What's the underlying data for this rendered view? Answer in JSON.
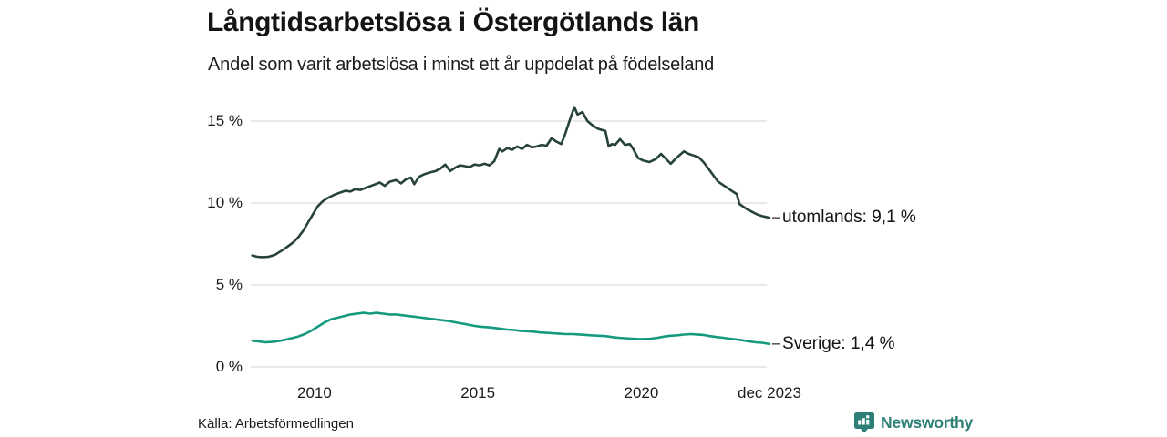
{
  "header": {
    "title": "Långtidsarbetslösa i Östergötlands län",
    "subtitle": "Andel som varit arbetslösa i minst ett år uppdelat på födelseland"
  },
  "chart_data": {
    "type": "line",
    "title": "Långtidsarbetslösa i Östergötlands län",
    "subtitle": "Andel som varit arbetslösa i minst ett år uppdelat på födelseland",
    "unit": "%",
    "grid": true,
    "legend_position": "right-end-labels",
    "x_range": [
      2008.05,
      2023.92
    ],
    "y_range": [
      0,
      15.9
    ],
    "grid_color": "#dcdcdc",
    "y_ticks": [
      {
        "value": 0,
        "label": "0 %"
      },
      {
        "value": 5,
        "label": "5 %"
      },
      {
        "value": 10,
        "label": "10 %"
      },
      {
        "value": 15,
        "label": "15 %"
      }
    ],
    "x_ticks": [
      {
        "value": 2010,
        "label": "2010"
      },
      {
        "value": 2015,
        "label": "2015"
      },
      {
        "value": 2020,
        "label": "2020"
      },
      {
        "value": 2023.92,
        "label": "dec 2023"
      }
    ],
    "series": [
      {
        "name": "utomlands",
        "end_label": "utomlands: 9,1 %",
        "color": "#27423c",
        "points": [
          [
            2008.1,
            6.8
          ],
          [
            2008.25,
            6.72
          ],
          [
            2008.4,
            6.7
          ],
          [
            2008.6,
            6.72
          ],
          [
            2008.8,
            6.85
          ],
          [
            2009.0,
            7.1
          ],
          [
            2009.15,
            7.3
          ],
          [
            2009.25,
            7.45
          ],
          [
            2009.35,
            7.6
          ],
          [
            2009.5,
            7.9
          ],
          [
            2009.65,
            8.3
          ],
          [
            2009.8,
            8.8
          ],
          [
            2009.95,
            9.3
          ],
          [
            2010.1,
            9.8
          ],
          [
            2010.25,
            10.1
          ],
          [
            2010.4,
            10.3
          ],
          [
            2010.6,
            10.5
          ],
          [
            2010.8,
            10.65
          ],
          [
            2010.95,
            10.75
          ],
          [
            2011.1,
            10.7
          ],
          [
            2011.25,
            10.85
          ],
          [
            2011.4,
            10.8
          ],
          [
            2011.6,
            10.95
          ],
          [
            2011.8,
            11.1
          ],
          [
            2012.0,
            11.25
          ],
          [
            2012.15,
            11.05
          ],
          [
            2012.3,
            11.3
          ],
          [
            2012.5,
            11.4
          ],
          [
            2012.65,
            11.2
          ],
          [
            2012.8,
            11.45
          ],
          [
            2012.95,
            11.55
          ],
          [
            2013.05,
            11.15
          ],
          [
            2013.2,
            11.6
          ],
          [
            2013.35,
            11.75
          ],
          [
            2013.5,
            11.85
          ],
          [
            2013.7,
            11.95
          ],
          [
            2013.85,
            12.1
          ],
          [
            2014.0,
            12.35
          ],
          [
            2014.15,
            11.95
          ],
          [
            2014.3,
            12.15
          ],
          [
            2014.45,
            12.3
          ],
          [
            2014.6,
            12.25
          ],
          [
            2014.75,
            12.2
          ],
          [
            2014.9,
            12.35
          ],
          [
            2015.05,
            12.3
          ],
          [
            2015.2,
            12.4
          ],
          [
            2015.35,
            12.3
          ],
          [
            2015.5,
            12.55
          ],
          [
            2015.65,
            13.3
          ],
          [
            2015.75,
            13.15
          ],
          [
            2015.9,
            13.35
          ],
          [
            2016.05,
            13.25
          ],
          [
            2016.2,
            13.45
          ],
          [
            2016.35,
            13.3
          ],
          [
            2016.5,
            13.55
          ],
          [
            2016.65,
            13.4
          ],
          [
            2016.8,
            13.45
          ],
          [
            2016.95,
            13.55
          ],
          [
            2017.1,
            13.5
          ],
          [
            2017.25,
            13.95
          ],
          [
            2017.4,
            13.75
          ],
          [
            2017.55,
            13.6
          ],
          [
            2017.65,
            14.1
          ],
          [
            2017.75,
            14.7
          ],
          [
            2017.85,
            15.3
          ],
          [
            2017.95,
            15.85
          ],
          [
            2018.05,
            15.4
          ],
          [
            2018.2,
            15.55
          ],
          [
            2018.35,
            15.0
          ],
          [
            2018.5,
            14.75
          ],
          [
            2018.65,
            14.55
          ],
          [
            2018.8,
            14.45
          ],
          [
            2018.9,
            14.4
          ],
          [
            2019.0,
            13.45
          ],
          [
            2019.1,
            13.6
          ],
          [
            2019.2,
            13.55
          ],
          [
            2019.35,
            13.9
          ],
          [
            2019.5,
            13.55
          ],
          [
            2019.65,
            13.6
          ],
          [
            2019.75,
            13.3
          ],
          [
            2019.9,
            12.75
          ],
          [
            2020.05,
            12.6
          ],
          [
            2020.25,
            12.5
          ],
          [
            2020.45,
            12.7
          ],
          [
            2020.6,
            13.0
          ],
          [
            2020.75,
            12.7
          ],
          [
            2020.9,
            12.4
          ],
          [
            2021.1,
            12.8
          ],
          [
            2021.3,
            13.15
          ],
          [
            2021.45,
            13.0
          ],
          [
            2021.6,
            12.9
          ],
          [
            2021.75,
            12.8
          ],
          [
            2021.9,
            12.5
          ],
          [
            2022.05,
            12.1
          ],
          [
            2022.2,
            11.7
          ],
          [
            2022.35,
            11.3
          ],
          [
            2022.5,
            11.1
          ],
          [
            2022.65,
            10.9
          ],
          [
            2022.8,
            10.7
          ],
          [
            2022.92,
            10.55
          ],
          [
            2023.0,
            9.95
          ],
          [
            2023.1,
            9.8
          ],
          [
            2023.25,
            9.6
          ],
          [
            2023.4,
            9.45
          ],
          [
            2023.55,
            9.3
          ],
          [
            2023.7,
            9.2
          ],
          [
            2023.92,
            9.1
          ]
        ]
      },
      {
        "name": "Sverige",
        "end_label": "Sverige: 1,4 %",
        "color": "#169a7f",
        "points": [
          [
            2008.1,
            1.6
          ],
          [
            2008.3,
            1.55
          ],
          [
            2008.5,
            1.5
          ],
          [
            2008.7,
            1.52
          ],
          [
            2008.9,
            1.58
          ],
          [
            2009.1,
            1.65
          ],
          [
            2009.3,
            1.75
          ],
          [
            2009.5,
            1.85
          ],
          [
            2009.7,
            2.0
          ],
          [
            2009.9,
            2.2
          ],
          [
            2010.1,
            2.45
          ],
          [
            2010.3,
            2.7
          ],
          [
            2010.5,
            2.9
          ],
          [
            2010.7,
            3.0
          ],
          [
            2010.9,
            3.1
          ],
          [
            2011.1,
            3.2
          ],
          [
            2011.3,
            3.25
          ],
          [
            2011.5,
            3.3
          ],
          [
            2011.7,
            3.25
          ],
          [
            2011.9,
            3.3
          ],
          [
            2012.1,
            3.25
          ],
          [
            2012.3,
            3.2
          ],
          [
            2012.5,
            3.2
          ],
          [
            2012.7,
            3.15
          ],
          [
            2012.9,
            3.1
          ],
          [
            2013.1,
            3.05
          ],
          [
            2013.3,
            3.0
          ],
          [
            2013.5,
            2.95
          ],
          [
            2013.7,
            2.9
          ],
          [
            2013.9,
            2.85
          ],
          [
            2014.1,
            2.8
          ],
          [
            2014.3,
            2.72
          ],
          [
            2014.5,
            2.65
          ],
          [
            2014.7,
            2.58
          ],
          [
            2014.9,
            2.5
          ],
          [
            2015.1,
            2.45
          ],
          [
            2015.3,
            2.42
          ],
          [
            2015.5,
            2.38
          ],
          [
            2015.7,
            2.32
          ],
          [
            2015.9,
            2.28
          ],
          [
            2016.1,
            2.25
          ],
          [
            2016.3,
            2.2
          ],
          [
            2016.5,
            2.18
          ],
          [
            2016.7,
            2.15
          ],
          [
            2016.9,
            2.1
          ],
          [
            2017.1,
            2.08
          ],
          [
            2017.3,
            2.05
          ],
          [
            2017.5,
            2.02
          ],
          [
            2017.7,
            2.0
          ],
          [
            2017.9,
            2.0
          ],
          [
            2018.1,
            1.98
          ],
          [
            2018.3,
            1.95
          ],
          [
            2018.5,
            1.92
          ],
          [
            2018.7,
            1.9
          ],
          [
            2018.9,
            1.88
          ],
          [
            2019.1,
            1.82
          ],
          [
            2019.3,
            1.78
          ],
          [
            2019.5,
            1.75
          ],
          [
            2019.7,
            1.72
          ],
          [
            2019.9,
            1.7
          ],
          [
            2020.1,
            1.7
          ],
          [
            2020.3,
            1.72
          ],
          [
            2020.5,
            1.78
          ],
          [
            2020.7,
            1.85
          ],
          [
            2020.9,
            1.9
          ],
          [
            2021.1,
            1.93
          ],
          [
            2021.3,
            1.97
          ],
          [
            2021.5,
            2.0
          ],
          [
            2021.7,
            1.98
          ],
          [
            2021.9,
            1.95
          ],
          [
            2022.1,
            1.88
          ],
          [
            2022.3,
            1.82
          ],
          [
            2022.5,
            1.78
          ],
          [
            2022.7,
            1.72
          ],
          [
            2022.9,
            1.68
          ],
          [
            2023.1,
            1.62
          ],
          [
            2023.3,
            1.55
          ],
          [
            2023.5,
            1.5
          ],
          [
            2023.7,
            1.47
          ],
          [
            2023.92,
            1.4
          ]
        ]
      }
    ],
    "end_label_dash_color": "#5a5a5a"
  },
  "footer": {
    "source": "Källa: Arbetsförmedlingen",
    "brand": "Newsworthy",
    "brand_color": "#2e8077"
  }
}
